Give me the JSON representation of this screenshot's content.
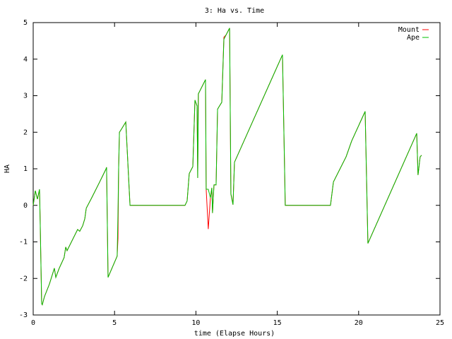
{
  "chart_data": {
    "type": "line",
    "title": "3: Ha vs. Time",
    "x_label": "time (Elapse Hours)",
    "y_label": "HA",
    "xlim": [
      0,
      25
    ],
    "xticks": [
      0,
      5,
      10,
      15,
      20,
      25
    ],
    "ylim": [
      -3,
      5
    ],
    "yticks": [
      -3,
      -2,
      -1,
      0,
      1,
      2,
      3,
      4,
      5
    ],
    "legend": "upper right",
    "series": [
      {
        "name": "Mount",
        "color": "#ff0000",
        "x": [
          0,
          0.13,
          0.26,
          0.39,
          0.43,
          0.52,
          0.56,
          0.69,
          1.0,
          1.3,
          1.39,
          1.6,
          1.9,
          2.0,
          2.08,
          2.73,
          2.86,
          3.04,
          3.17,
          3.26,
          3.6,
          4.04,
          4.25,
          4.47,
          4.51,
          4.6,
          5.16,
          5.21,
          5.25,
          5.3,
          5.43,
          5.69,
          5.95,
          9.33,
          9.46,
          9.59,
          9.81,
          9.9,
          9.94,
          10.07,
          10.11,
          10.15,
          10.59,
          10.63,
          10.76,
          10.89,
          10.98,
          11.02,
          11.11,
          11.24,
          11.33,
          11.41,
          11.59,
          11.72,
          11.85,
          12.07,
          12.15,
          12.28,
          12.37,
          15.32,
          15.49,
          18.27,
          18.45,
          19.23,
          19.57,
          20.4,
          20.57,
          23.57,
          23.65,
          23.78,
          23.87
        ],
        "values": [
          0,
          0.4,
          0.17,
          0.44,
          -0.46,
          -2.69,
          -2.72,
          -2.5,
          -2.15,
          -1.72,
          -1.97,
          -1.72,
          -1.43,
          -1.14,
          -1.24,
          -0.66,
          -0.71,
          -0.56,
          -0.37,
          -0.08,
          0.21,
          0.6,
          0.79,
          0.99,
          1.04,
          -1.97,
          -1.39,
          -0.9,
          1.0,
          2.0,
          2.09,
          2.28,
          0,
          0,
          0.12,
          0.87,
          1.06,
          2.3,
          2.88,
          2.72,
          0.75,
          3.05,
          3.44,
          0.44,
          -0.65,
          0.21,
          0.48,
          -0.21,
          0.56,
          0.56,
          2.63,
          2.69,
          2.82,
          4.6,
          4.66,
          4.85,
          0.31,
          0.02,
          1.18,
          4.12,
          0,
          0,
          0.64,
          1.33,
          1.76,
          2.57,
          -1.04,
          1.97,
          0.83,
          1.33,
          1.37
        ]
      },
      {
        "name": "Ape",
        "color": "#00c000",
        "x": [
          0,
          0.13,
          0.26,
          0.39,
          0.43,
          0.52,
          0.56,
          0.69,
          1.0,
          1.3,
          1.39,
          1.6,
          1.9,
          2.0,
          2.08,
          2.73,
          2.86,
          3.04,
          3.17,
          3.26,
          3.6,
          4.04,
          4.25,
          4.47,
          4.51,
          4.6,
          5.16,
          5.21,
          5.25,
          5.3,
          5.43,
          5.69,
          5.95,
          9.33,
          9.46,
          9.59,
          9.81,
          9.9,
          9.94,
          10.07,
          10.11,
          10.15,
          10.59,
          10.63,
          10.76,
          10.89,
          10.98,
          11.02,
          11.11,
          11.24,
          11.33,
          11.41,
          11.59,
          11.72,
          11.85,
          12.07,
          12.15,
          12.28,
          12.37,
          15.32,
          15.49,
          18.27,
          18.45,
          19.23,
          19.57,
          20.4,
          20.57,
          23.57,
          23.65,
          23.78,
          23.87
        ],
        "values": [
          0,
          0.4,
          0.17,
          0.44,
          -0.46,
          -2.69,
          -2.72,
          -2.5,
          -2.15,
          -1.72,
          -1.97,
          -1.72,
          -1.43,
          -1.14,
          -1.24,
          -0.66,
          -0.71,
          -0.56,
          -0.37,
          -0.08,
          0.21,
          0.6,
          0.79,
          0.99,
          1.04,
          -1.97,
          -1.39,
          -0.23,
          1.0,
          2.0,
          2.09,
          2.28,
          0,
          0,
          0.12,
          0.87,
          1.06,
          2.3,
          2.88,
          2.72,
          0.75,
          3.05,
          3.44,
          0.44,
          0.44,
          0.21,
          0.48,
          -0.21,
          0.56,
          0.56,
          2.63,
          2.69,
          2.82,
          4.54,
          4.66,
          4.85,
          0.31,
          0.02,
          1.18,
          4.12,
          0,
          0,
          0.64,
          1.33,
          1.76,
          2.57,
          -1.04,
          1.97,
          0.83,
          1.33,
          1.37
        ]
      }
    ]
  }
}
